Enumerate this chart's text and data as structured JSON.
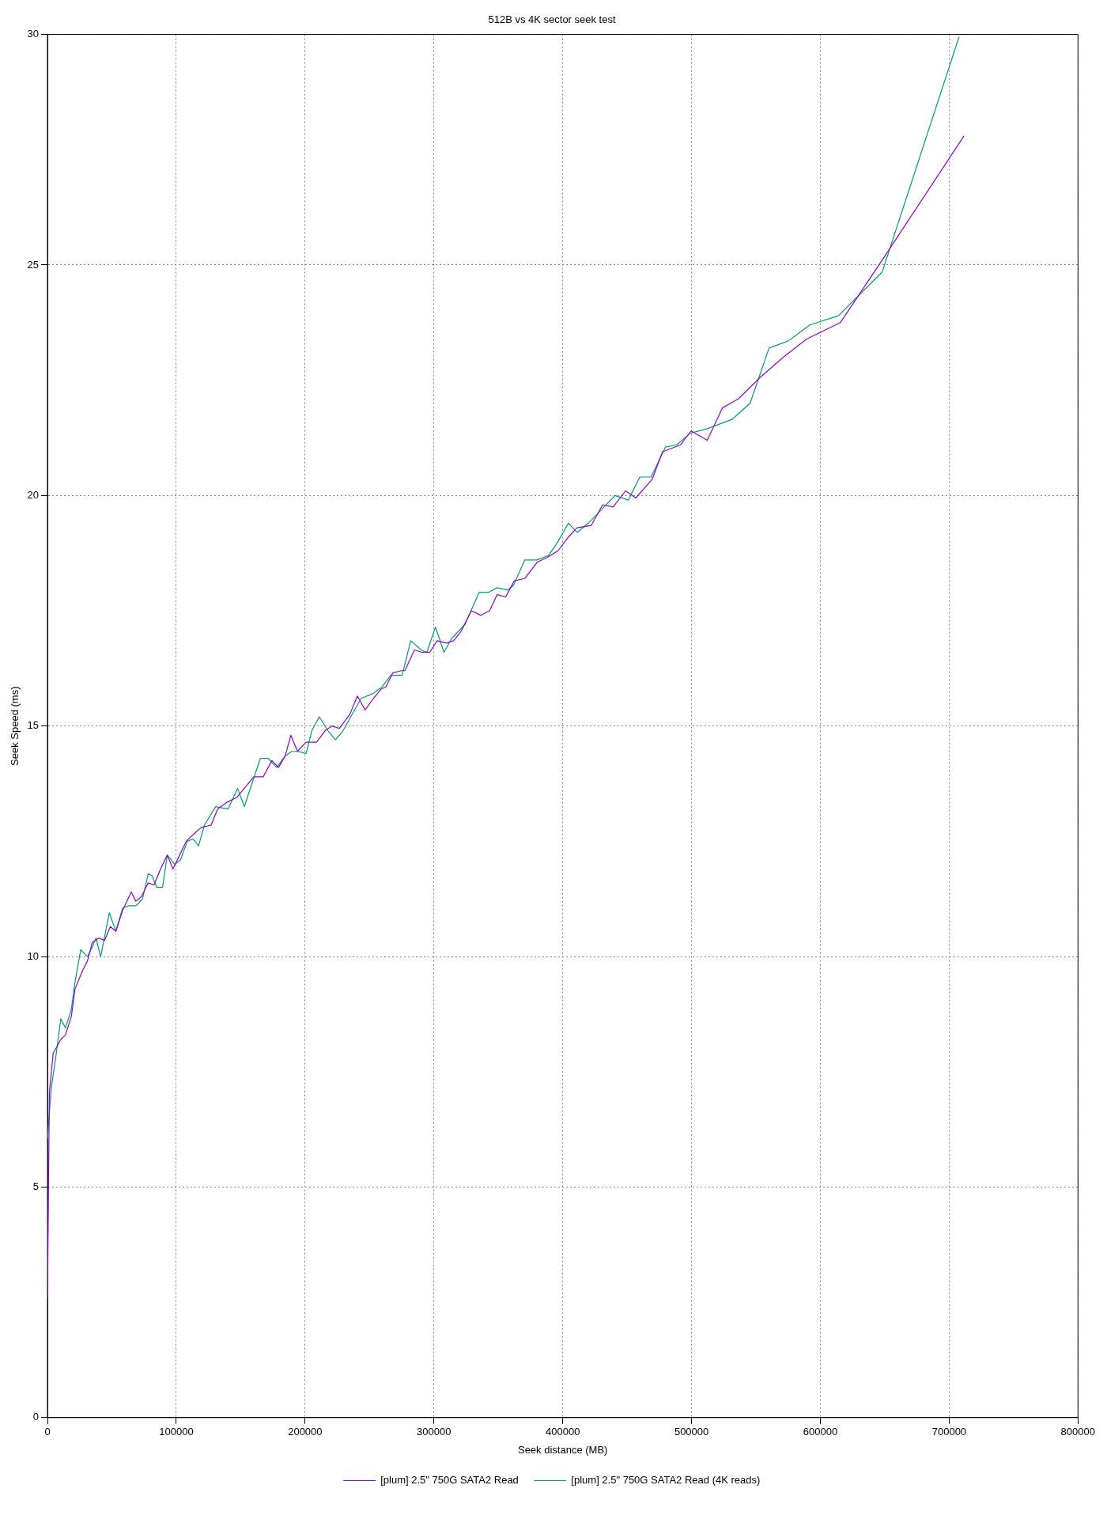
{
  "chart_data": {
    "type": "line",
    "title": "512B vs 4K sector seek test",
    "xlabel": "Seek distance (MB)",
    "ylabel": "Seek Speed (ms)",
    "xlim": [
      0,
      800000
    ],
    "xticks": [
      0,
      100000,
      200000,
      300000,
      400000,
      500000,
      600000,
      700000,
      800000
    ],
    "ylim": [
      0,
      30
    ],
    "yticks": [
      0,
      5,
      10,
      15,
      20,
      25,
      30
    ],
    "grid": true,
    "legend": "bottom",
    "marker": "none",
    "line_style": "solid",
    "series": [
      {
        "name": "[plum] 2.5\" 750G SATA2 Read",
        "color": "#9400d3",
        "x": [
          0,
          1476,
          4400,
          10300,
          14000,
          18500,
          21400,
          27300,
          31000,
          34700,
          39900,
          44300,
          48700,
          53100,
          58300,
          65000,
          68600,
          73000,
          78200,
          82700,
          87800,
          93000,
          97400,
          102600,
          107700,
          115100,
          119600,
          127000,
          132100,
          139500,
          146900,
          152800,
          160200,
          167500,
          174200,
          179300,
          184500,
          188900,
          194100,
          200700,
          208900,
          215500,
          220700,
          226600,
          234700,
          240600,
          246500,
          253100,
          259000,
          262700,
          268000,
          274500,
          277400,
          284900,
          290800,
          296700,
          302500,
          310000,
          315200,
          321000,
          329100,
          336500,
          343200,
          349100,
          355700,
          362400,
          370500,
          380100,
          387500,
          396300,
          404400,
          411100,
          422100,
          431000,
          439100,
          448700,
          456800,
          469400,
          477500,
          491500,
          499600,
          512200,
          524000,
          536500,
          552800,
          571200,
          589700,
          615500,
          650200,
          711500
        ],
        "values": [
          2.6,
          7.06,
          7.9,
          8.2,
          8.3,
          8.7,
          9.3,
          9.7,
          9.9,
          10.3,
          10.4,
          10.35,
          10.65,
          10.55,
          11.0,
          11.4,
          11.2,
          11.3,
          11.6,
          11.55,
          11.9,
          12.2,
          11.9,
          12.2,
          12.5,
          12.7,
          12.8,
          12.85,
          13.2,
          13.35,
          13.45,
          13.65,
          13.9,
          13.9,
          14.25,
          14.1,
          14.35,
          14.8,
          14.45,
          14.65,
          14.65,
          14.9,
          15.0,
          14.95,
          15.25,
          15.65,
          15.35,
          15.6,
          15.8,
          15.85,
          16.15,
          16.2,
          16.2,
          16.65,
          16.6,
          16.6,
          16.85,
          16.8,
          16.85,
          17.05,
          17.5,
          17.4,
          17.5,
          17.85,
          17.8,
          18.15,
          18.2,
          18.55,
          18.65,
          18.8,
          19.1,
          19.3,
          19.35,
          19.8,
          19.75,
          20.1,
          19.95,
          20.35,
          20.95,
          21.1,
          21.4,
          21.2,
          21.9,
          22.1,
          22.55,
          23.0,
          23.4,
          23.75,
          25.2,
          27.8
        ]
      },
      {
        "name": "[plum] 2.5\" 750G SATA2 Read (4K reads)",
        "color": "#009e73",
        "x": [
          0,
          2950,
          6600,
          10300,
          14000,
          18500,
          21400,
          25800,
          31000,
          34700,
          37600,
          41300,
          48000,
          53100,
          58300,
          62700,
          68600,
          73800,
          78200,
          81200,
          84900,
          89300,
          93000,
          98900,
          103300,
          108500,
          112900,
          117300,
          121800,
          130600,
          140200,
          147600,
          152800,
          158700,
          165300,
          171200,
          177900,
          184500,
          189700,
          194900,
          200700,
          205200,
          211000,
          217700,
          223600,
          229500,
          235400,
          243500,
          252400,
          259800,
          266400,
          275300,
          282000,
          290100,
          294500,
          301200,
          307800,
          313700,
          324000,
          335100,
          342400,
          349100,
          357200,
          361700,
          370500,
          380100,
          389000,
          396300,
          404400,
          411100,
          419900,
          430300,
          440600,
          450900,
          459800,
          468600,
          479700,
          488600,
          498900,
          512200,
          531400,
          545400,
          560200,
          574900,
          591900,
          614000,
          648000,
          707700
        ],
        "values": [
          6.05,
          7.15,
          7.85,
          8.65,
          8.45,
          8.85,
          9.45,
          10.15,
          10.0,
          10.2,
          10.4,
          10.0,
          10.95,
          10.55,
          11.05,
          11.1,
          11.1,
          11.25,
          11.8,
          11.75,
          11.5,
          11.5,
          12.2,
          12.0,
          12.1,
          12.5,
          12.55,
          12.4,
          12.85,
          13.25,
          13.2,
          13.65,
          13.25,
          13.75,
          14.3,
          14.3,
          14.1,
          14.35,
          14.45,
          14.45,
          14.4,
          14.9,
          15.2,
          14.9,
          14.7,
          14.9,
          15.2,
          15.6,
          15.7,
          15.85,
          16.1,
          16.1,
          16.85,
          16.65,
          16.6,
          17.15,
          16.6,
          16.9,
          17.2,
          17.9,
          17.9,
          18.0,
          17.95,
          18.05,
          18.6,
          18.6,
          18.7,
          19.0,
          19.4,
          19.2,
          19.4,
          19.7,
          20.0,
          19.9,
          20.4,
          20.4,
          21.05,
          21.1,
          21.35,
          21.45,
          21.65,
          22.0,
          23.2,
          23.35,
          23.7,
          23.9,
          24.85,
          29.95
        ]
      }
    ]
  }
}
